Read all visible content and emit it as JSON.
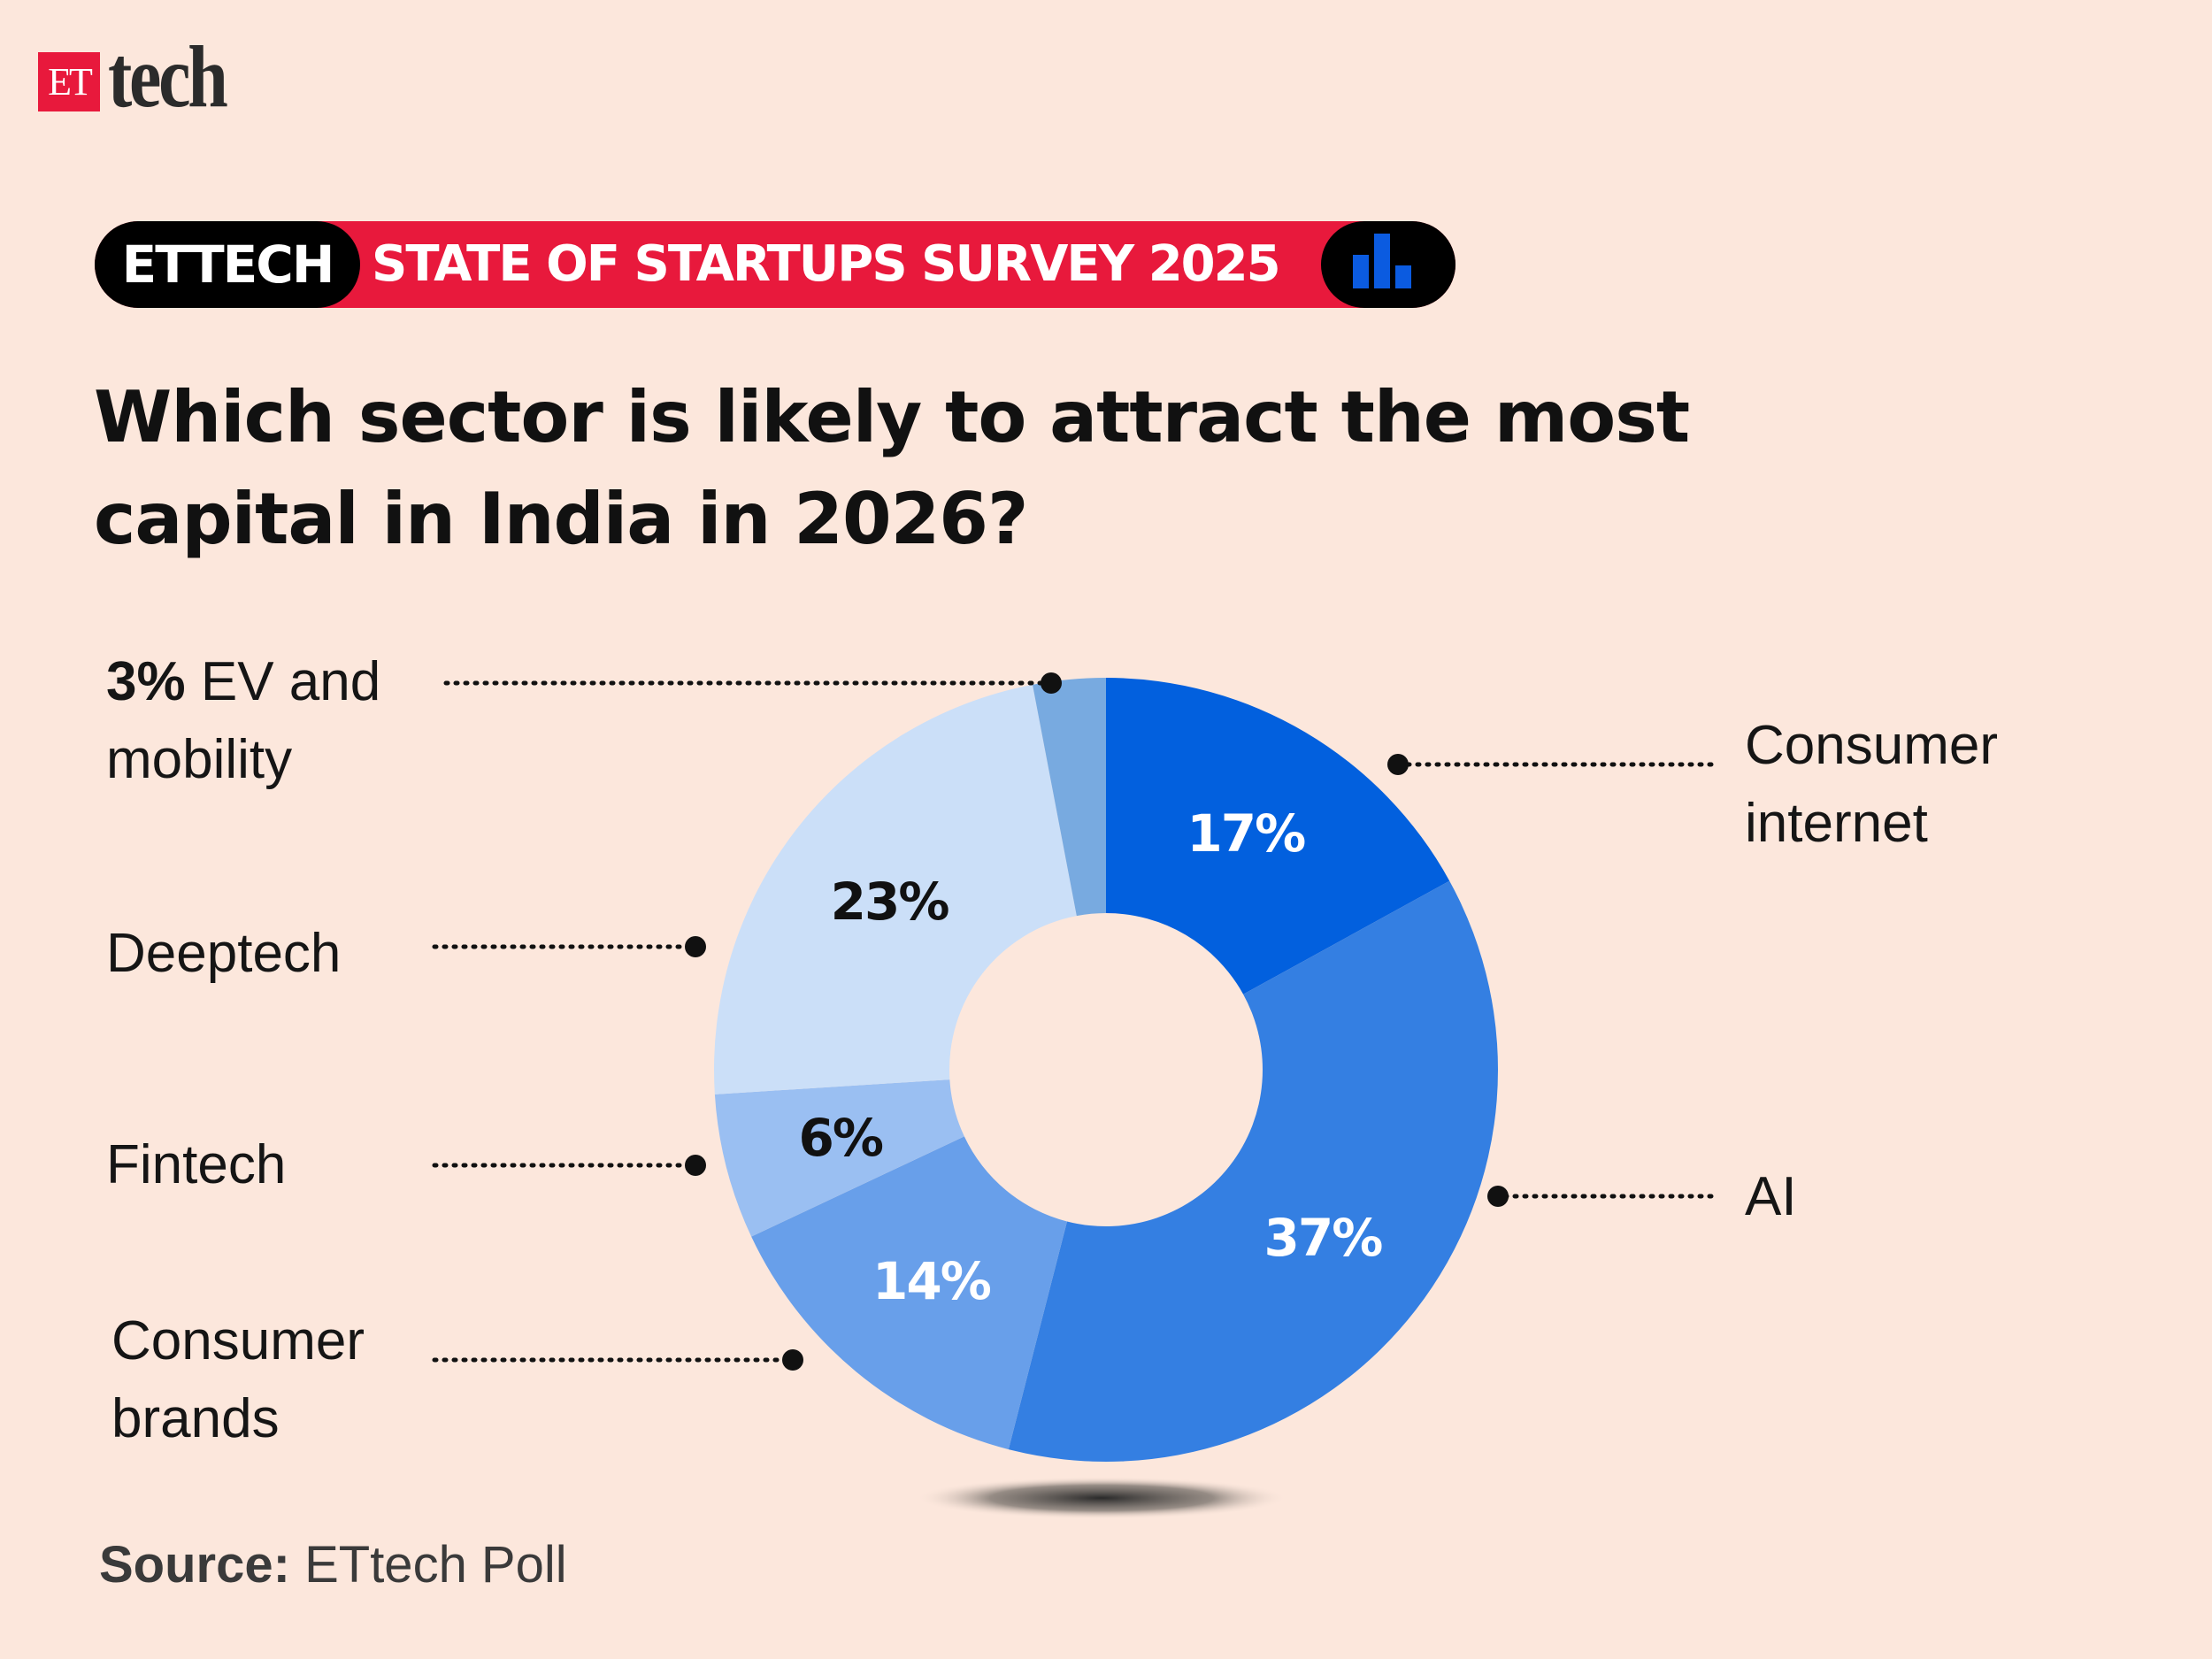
{
  "logo": {
    "box_text": "ET",
    "text": "tech"
  },
  "banner": {
    "left": "ETTECH",
    "middle": "STATE OF STARTUPS SURVEY 2025",
    "icon": "bar-chart-icon"
  },
  "title": {
    "line1": "Which sector is likely to attract the most",
    "line2": "capital in India in 2026?"
  },
  "source": {
    "label": "Source:",
    "value": "ETtech Poll"
  },
  "chart_data": {
    "type": "pie",
    "variant": "donut",
    "categories": [
      "Consumer internet",
      "AI",
      "Consumer brands",
      "Fintech",
      "Deeptech",
      "EV and mobility"
    ],
    "values": [
      17,
      37,
      14,
      6,
      23,
      3
    ],
    "data_labels": [
      "17%",
      "37%",
      "14%",
      "6%",
      "23%",
      ""
    ],
    "colors": [
      "#0260DE",
      "#347FE2",
      "#689FEA",
      "#9ABFF2",
      "#CBDFF8",
      "#78AAE0"
    ],
    "label_colors": [
      "#ffffff",
      "#ffffff",
      "#ffffff",
      "#111111",
      "#111111",
      "#111111"
    ],
    "annotations": {
      "consumer_internet": {
        "line1": "Consumer",
        "line2": "internet"
      },
      "ai": {
        "line1": "AI"
      },
      "consumer_brands": {
        "line1": "Consumer",
        "line2": "brands"
      },
      "fintech": {
        "line1": "Fintech"
      },
      "deeptech": {
        "line1": "Deeptech"
      },
      "ev": {
        "pct": "3%",
        "line1": "EV and",
        "line2": "mobility"
      }
    }
  }
}
